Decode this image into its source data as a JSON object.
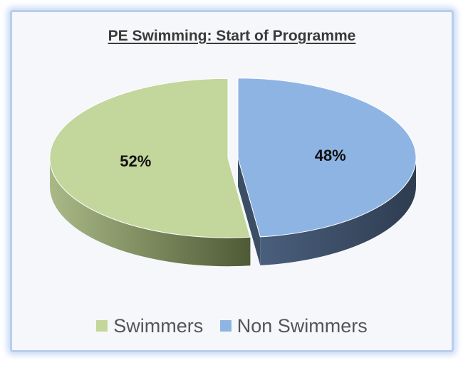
{
  "chart_data": {
    "type": "pie",
    "title": "PE Swimming: Start of Programme",
    "slices": [
      {
        "name": "Swimmers",
        "value": 52,
        "label": "52%",
        "color": "#c3d69b",
        "side_color": "#6e7d4c"
      },
      {
        "name": "Non Swimmers",
        "value": 48,
        "label": "48%",
        "color": "#8eb4e3",
        "side_color": "#3b4e66"
      }
    ],
    "legend_position": "bottom",
    "style": "3d-exploded"
  }
}
